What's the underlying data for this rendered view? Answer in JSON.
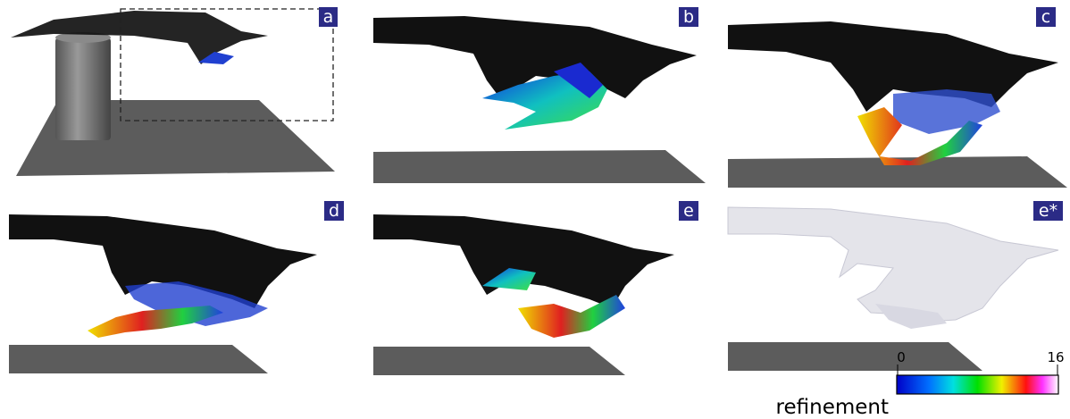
{
  "panels": [
    {
      "label": "a"
    },
    {
      "label": "b"
    },
    {
      "label": "c"
    },
    {
      "label": "d"
    },
    {
      "label": "e"
    },
    {
      "label": "e*"
    }
  ],
  "colorbar": {
    "title": "refinement",
    "ticks": [
      0,
      16
    ]
  }
}
